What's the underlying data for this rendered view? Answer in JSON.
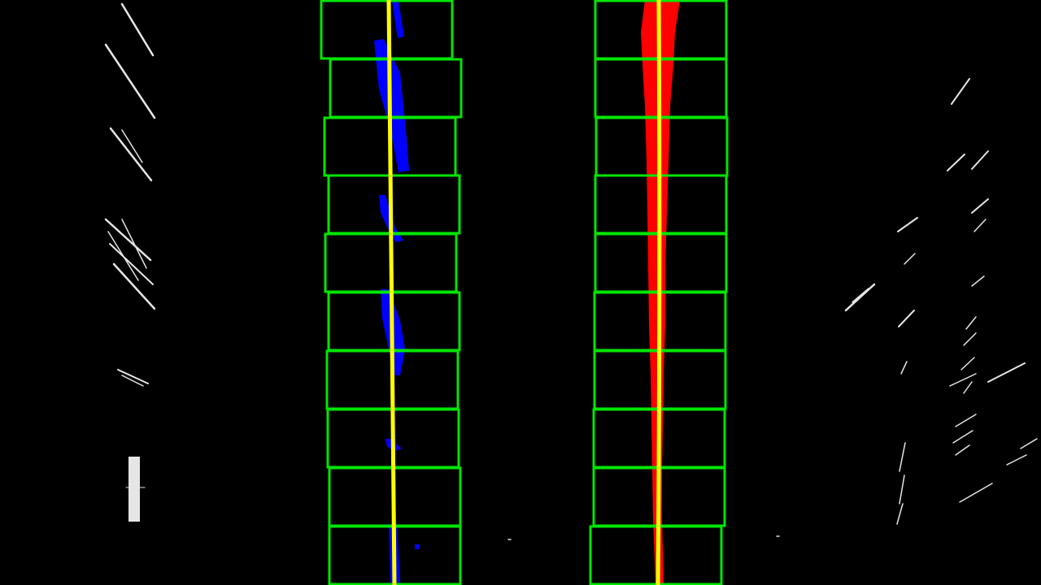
{
  "image": {
    "background_color": "#000000",
    "window_color": "#00e600",
    "left_pixel_color": "#0000ff",
    "right_pixel_color": "#ff0000",
    "fit_line_color": "#ffff00",
    "noise_color": "#ffffff"
  },
  "lanes": [
    {
      "name": "left-lane",
      "window_count": 10
    },
    {
      "name": "right-lane",
      "window_count": 10
    }
  ]
}
